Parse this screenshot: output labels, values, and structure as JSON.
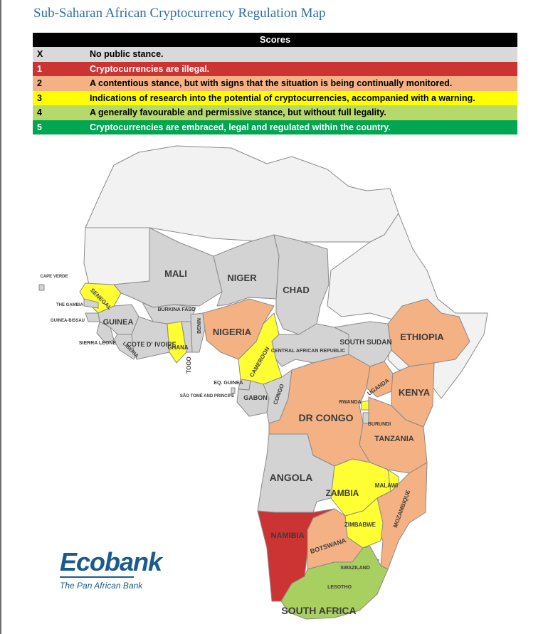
{
  "title": "Sub-Saharan African Cryptocurrency Regulation Map",
  "legend": {
    "header": "Scores",
    "rows": [
      {
        "code": "X",
        "text": "No public stance.",
        "bg": "#d9d9d9",
        "fg": "#000000"
      },
      {
        "code": "1",
        "text": "Cryptocurrencies are illegal.",
        "bg": "#cc3333",
        "fg": "#ffffff"
      },
      {
        "code": "2",
        "text": "A contentious stance, but with signs that the situation is being continually monitored.",
        "bg": "#f4b183",
        "fg": "#000000"
      },
      {
        "code": "3",
        "text": "Indications of research into the potential of cryptocurrencies, accompanied with a warning.",
        "bg": "#ffff00",
        "fg": "#000000"
      },
      {
        "code": "4",
        "text": "A generally favourable and permissive stance, but without full legality.",
        "bg": "#b5d96a",
        "fg": "#000000"
      },
      {
        "code": "5",
        "text": "Cryptocurrencies are embraced, legal and regulated within the country.",
        "bg": "#00a651",
        "fg": "#ffffff"
      }
    ]
  },
  "score_colors": {
    "none": "#f2f2f2",
    "X": "#d3d3d3",
    "1": "#cc3333",
    "2": "#f4b183",
    "3": "#ffff33",
    "4": "#a8d060"
  },
  "countries": [
    {
      "key": "mali",
      "label": "MALI",
      "score": "X"
    },
    {
      "key": "niger",
      "label": "NIGER",
      "score": "X"
    },
    {
      "key": "chad",
      "label": "CHAD",
      "score": "X"
    },
    {
      "key": "cape_verde",
      "label": "CAPE VERDE",
      "score": "X"
    },
    {
      "key": "senegal",
      "label": "SENEGAL",
      "score": "3"
    },
    {
      "key": "the_gambia",
      "label": "THE GAMBIA",
      "score": "X"
    },
    {
      "key": "guinea_bissau",
      "label": "GUINEA-BISSAU",
      "score": "X"
    },
    {
      "key": "guinea",
      "label": "GUINEA",
      "score": "X"
    },
    {
      "key": "sierra_leone",
      "label": "SIERRA LEONE",
      "score": "X"
    },
    {
      "key": "liberia",
      "label": "LIBERIA",
      "score": "X"
    },
    {
      "key": "cote_divoire",
      "label": "COTE D' IVOIRE",
      "score": "X"
    },
    {
      "key": "burkina_faso",
      "label": "BURKINA FASO",
      "score": "X"
    },
    {
      "key": "ghana",
      "label": "GHANA",
      "score": "3"
    },
    {
      "key": "togo",
      "label": "TOGO",
      "score": "X"
    },
    {
      "key": "benin",
      "label": "BENIN",
      "score": "X"
    },
    {
      "key": "nigeria",
      "label": "NIGERIA",
      "score": "2"
    },
    {
      "key": "cameroon",
      "label": "CAMEROON",
      "score": "3"
    },
    {
      "key": "car",
      "label": "CENTRAL AFRICAN REPUBLIC",
      "score": "X"
    },
    {
      "key": "south_sudan",
      "label": "SOUTH SUDAN",
      "score": "X"
    },
    {
      "key": "ethiopia",
      "label": "ETHIOPIA",
      "score": "2"
    },
    {
      "key": "eq_guinea",
      "label": "EQ. GUINEA",
      "score": "X"
    },
    {
      "key": "sao_tome",
      "label": "SÃO TOMÉ AND PRINCIPE",
      "score": "X"
    },
    {
      "key": "gabon",
      "label": "GABON",
      "score": "X"
    },
    {
      "key": "congo",
      "label": "CONGO",
      "score": "X"
    },
    {
      "key": "dr_congo",
      "label": "DR CONGO",
      "score": "2"
    },
    {
      "key": "uganda",
      "label": "UGANDA",
      "score": "2"
    },
    {
      "key": "kenya",
      "label": "KENYA",
      "score": "2"
    },
    {
      "key": "rwanda",
      "label": "RWANDA",
      "score": "3"
    },
    {
      "key": "burundi",
      "label": "BURUNDI",
      "score": "X"
    },
    {
      "key": "tanzania",
      "label": "TANZANIA",
      "score": "2"
    },
    {
      "key": "angola",
      "label": "ANGOLA",
      "score": "X"
    },
    {
      "key": "zambia",
      "label": "ZAMBIA",
      "score": "3"
    },
    {
      "key": "malawi",
      "label": "MALAWI",
      "score": "3"
    },
    {
      "key": "mozambique",
      "label": "MOZAMBIQUE",
      "score": "2"
    },
    {
      "key": "zimbabwe",
      "label": "ZIMBABWE",
      "score": "3"
    },
    {
      "key": "namibia",
      "label": "NAMIBIA",
      "score": "1"
    },
    {
      "key": "botswana",
      "label": "BOTSWANA",
      "score": "2"
    },
    {
      "key": "swaziland",
      "label": "SWAZILAND",
      "score": "4"
    },
    {
      "key": "lesotho",
      "label": "LESOTHO",
      "score": "4"
    },
    {
      "key": "south_africa",
      "label": "SOUTH AFRICA",
      "score": "4"
    }
  ],
  "logo": {
    "name": "Ecobank",
    "tagline": "The Pan African Bank"
  }
}
